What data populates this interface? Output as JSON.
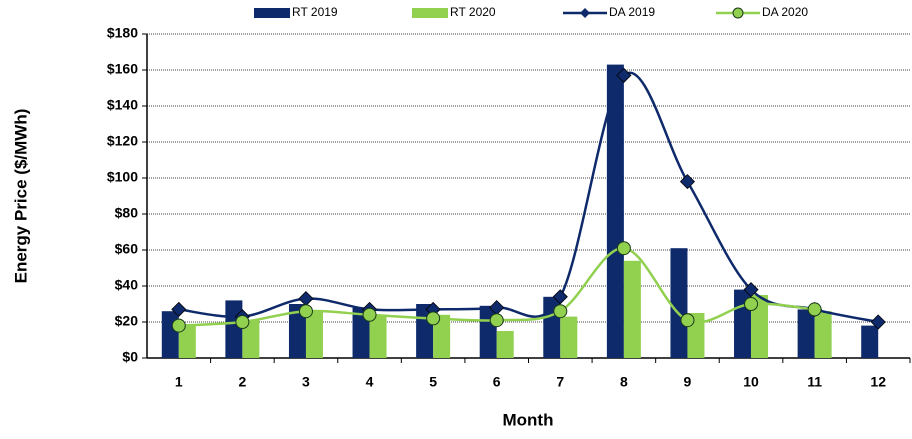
{
  "chart_data": {
    "type": "combo",
    "x_label": "Month",
    "y_label": "Energy Price ($/MWh)",
    "categories": [
      "1",
      "2",
      "3",
      "4",
      "5",
      "6",
      "7",
      "8",
      "9",
      "10",
      "11",
      "12"
    ],
    "series": [
      {
        "name": "RT 2019",
        "type": "bar",
        "color": "#0f2a6b",
        "values": [
          26,
          32,
          30,
          28,
          30,
          29,
          34,
          163,
          61,
          38,
          27,
          18
        ]
      },
      {
        "name": "RT 2020",
        "type": "bar",
        "color": "#92d050",
        "values": [
          18,
          21,
          26,
          24,
          24,
          15,
          23,
          54,
          25,
          35,
          26,
          null
        ]
      },
      {
        "name": "DA 2019",
        "type": "line",
        "marker": "diamond",
        "color": "#0f2a6b",
        "values": [
          27,
          23,
          33,
          27,
          27,
          28,
          34,
          157,
          98,
          38,
          27,
          20
        ]
      },
      {
        "name": "DA 2020",
        "type": "line",
        "marker": "circle",
        "color": "#92d050",
        "values": [
          18,
          20,
          26,
          24,
          22,
          21,
          26,
          61,
          21,
          30,
          27,
          null
        ]
      }
    ],
    "ylim": [
      0,
      180
    ],
    "yticks": [
      {
        "value": 0,
        "label": "$0"
      },
      {
        "value": 20,
        "label": "$20"
      },
      {
        "value": 40,
        "label": "$40"
      },
      {
        "value": 60,
        "label": "$60"
      },
      {
        "value": 80,
        "label": "$80"
      },
      {
        "value": 100,
        "label": "$100"
      },
      {
        "value": 120,
        "label": "$120"
      },
      {
        "value": 140,
        "label": "$140"
      },
      {
        "value": 160,
        "label": "$160"
      },
      {
        "value": 180,
        "label": "$180"
      }
    ],
    "grid": true,
    "legend": "top"
  }
}
